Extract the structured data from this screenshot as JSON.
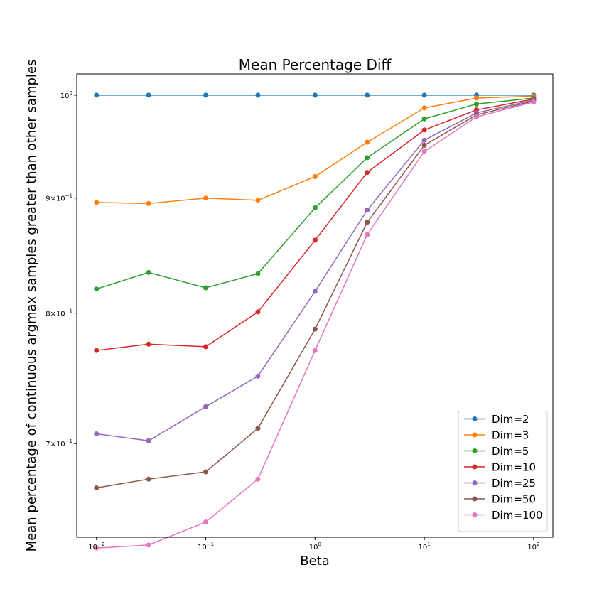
{
  "chart_data": {
    "type": "line",
    "title": "Mean Percentage Diff",
    "xlabel": "Beta",
    "ylabel": "Mean percentage of continuous argmax samples greater than other samples",
    "xscale": "log",
    "yscale": "log",
    "xlim": [
      0.0066,
      150
    ],
    "ylim": [
      0.636,
      1.022
    ],
    "x": [
      0.01,
      0.03,
      0.1,
      0.3,
      1,
      3,
      10,
      30,
      100
    ],
    "xticks": [
      {
        "value": 0.01,
        "base": "10",
        "exp": "−2"
      },
      {
        "value": 0.1,
        "base": "10",
        "exp": "−1"
      },
      {
        "value": 1,
        "base": "10",
        "exp": "0"
      },
      {
        "value": 10,
        "base": "10",
        "exp": "1"
      },
      {
        "value": 100,
        "base": "10",
        "exp": "2"
      }
    ],
    "yticks": [
      {
        "value": 0.7,
        "mant": "7",
        "base": "10",
        "exp": "−1"
      },
      {
        "value": 0.8,
        "mant": "8",
        "base": "10",
        "exp": "−1"
      },
      {
        "value": 0.9,
        "mant": "9",
        "base": "10",
        "exp": "−1"
      },
      {
        "value": 1.0,
        "mant": "",
        "base": "10",
        "exp": "0"
      }
    ],
    "grid": false,
    "legend_position": "lower right",
    "series": [
      {
        "name": "Dim=2",
        "color": "#1f77b4",
        "values": [
          1.0,
          1.0,
          1.0,
          1.0,
          1.0,
          1.0,
          1.0,
          1.0,
          1.0
        ]
      },
      {
        "name": "Dim=3",
        "color": "#ff7f0e",
        "values": [
          0.896,
          0.895,
          0.9,
          0.898,
          0.92,
          0.953,
          0.987,
          0.997,
          0.999
        ]
      },
      {
        "name": "Dim=5",
        "color": "#2ca02c",
        "values": [
          0.82,
          0.834,
          0.821,
          0.833,
          0.891,
          0.938,
          0.976,
          0.991,
          0.997
        ]
      },
      {
        "name": "Dim=10",
        "color": "#d62728",
        "values": [
          0.77,
          0.775,
          0.773,
          0.801,
          0.862,
          0.924,
          0.965,
          0.985,
          0.996
        ]
      },
      {
        "name": "Dim=25",
        "color": "#9467bd",
        "values": [
          0.707,
          0.702,
          0.727,
          0.75,
          0.818,
          0.889,
          0.955,
          0.982,
          0.995
        ]
      },
      {
        "name": "Dim=50",
        "color": "#8c564b",
        "values": [
          0.669,
          0.675,
          0.68,
          0.711,
          0.787,
          0.878,
          0.95,
          0.98,
          0.994
        ]
      },
      {
        "name": "Dim=100",
        "color": "#e377c2",
        "values": [
          0.629,
          0.631,
          0.646,
          0.675,
          0.77,
          0.867,
          0.944,
          0.978,
          0.993
        ]
      }
    ]
  }
}
